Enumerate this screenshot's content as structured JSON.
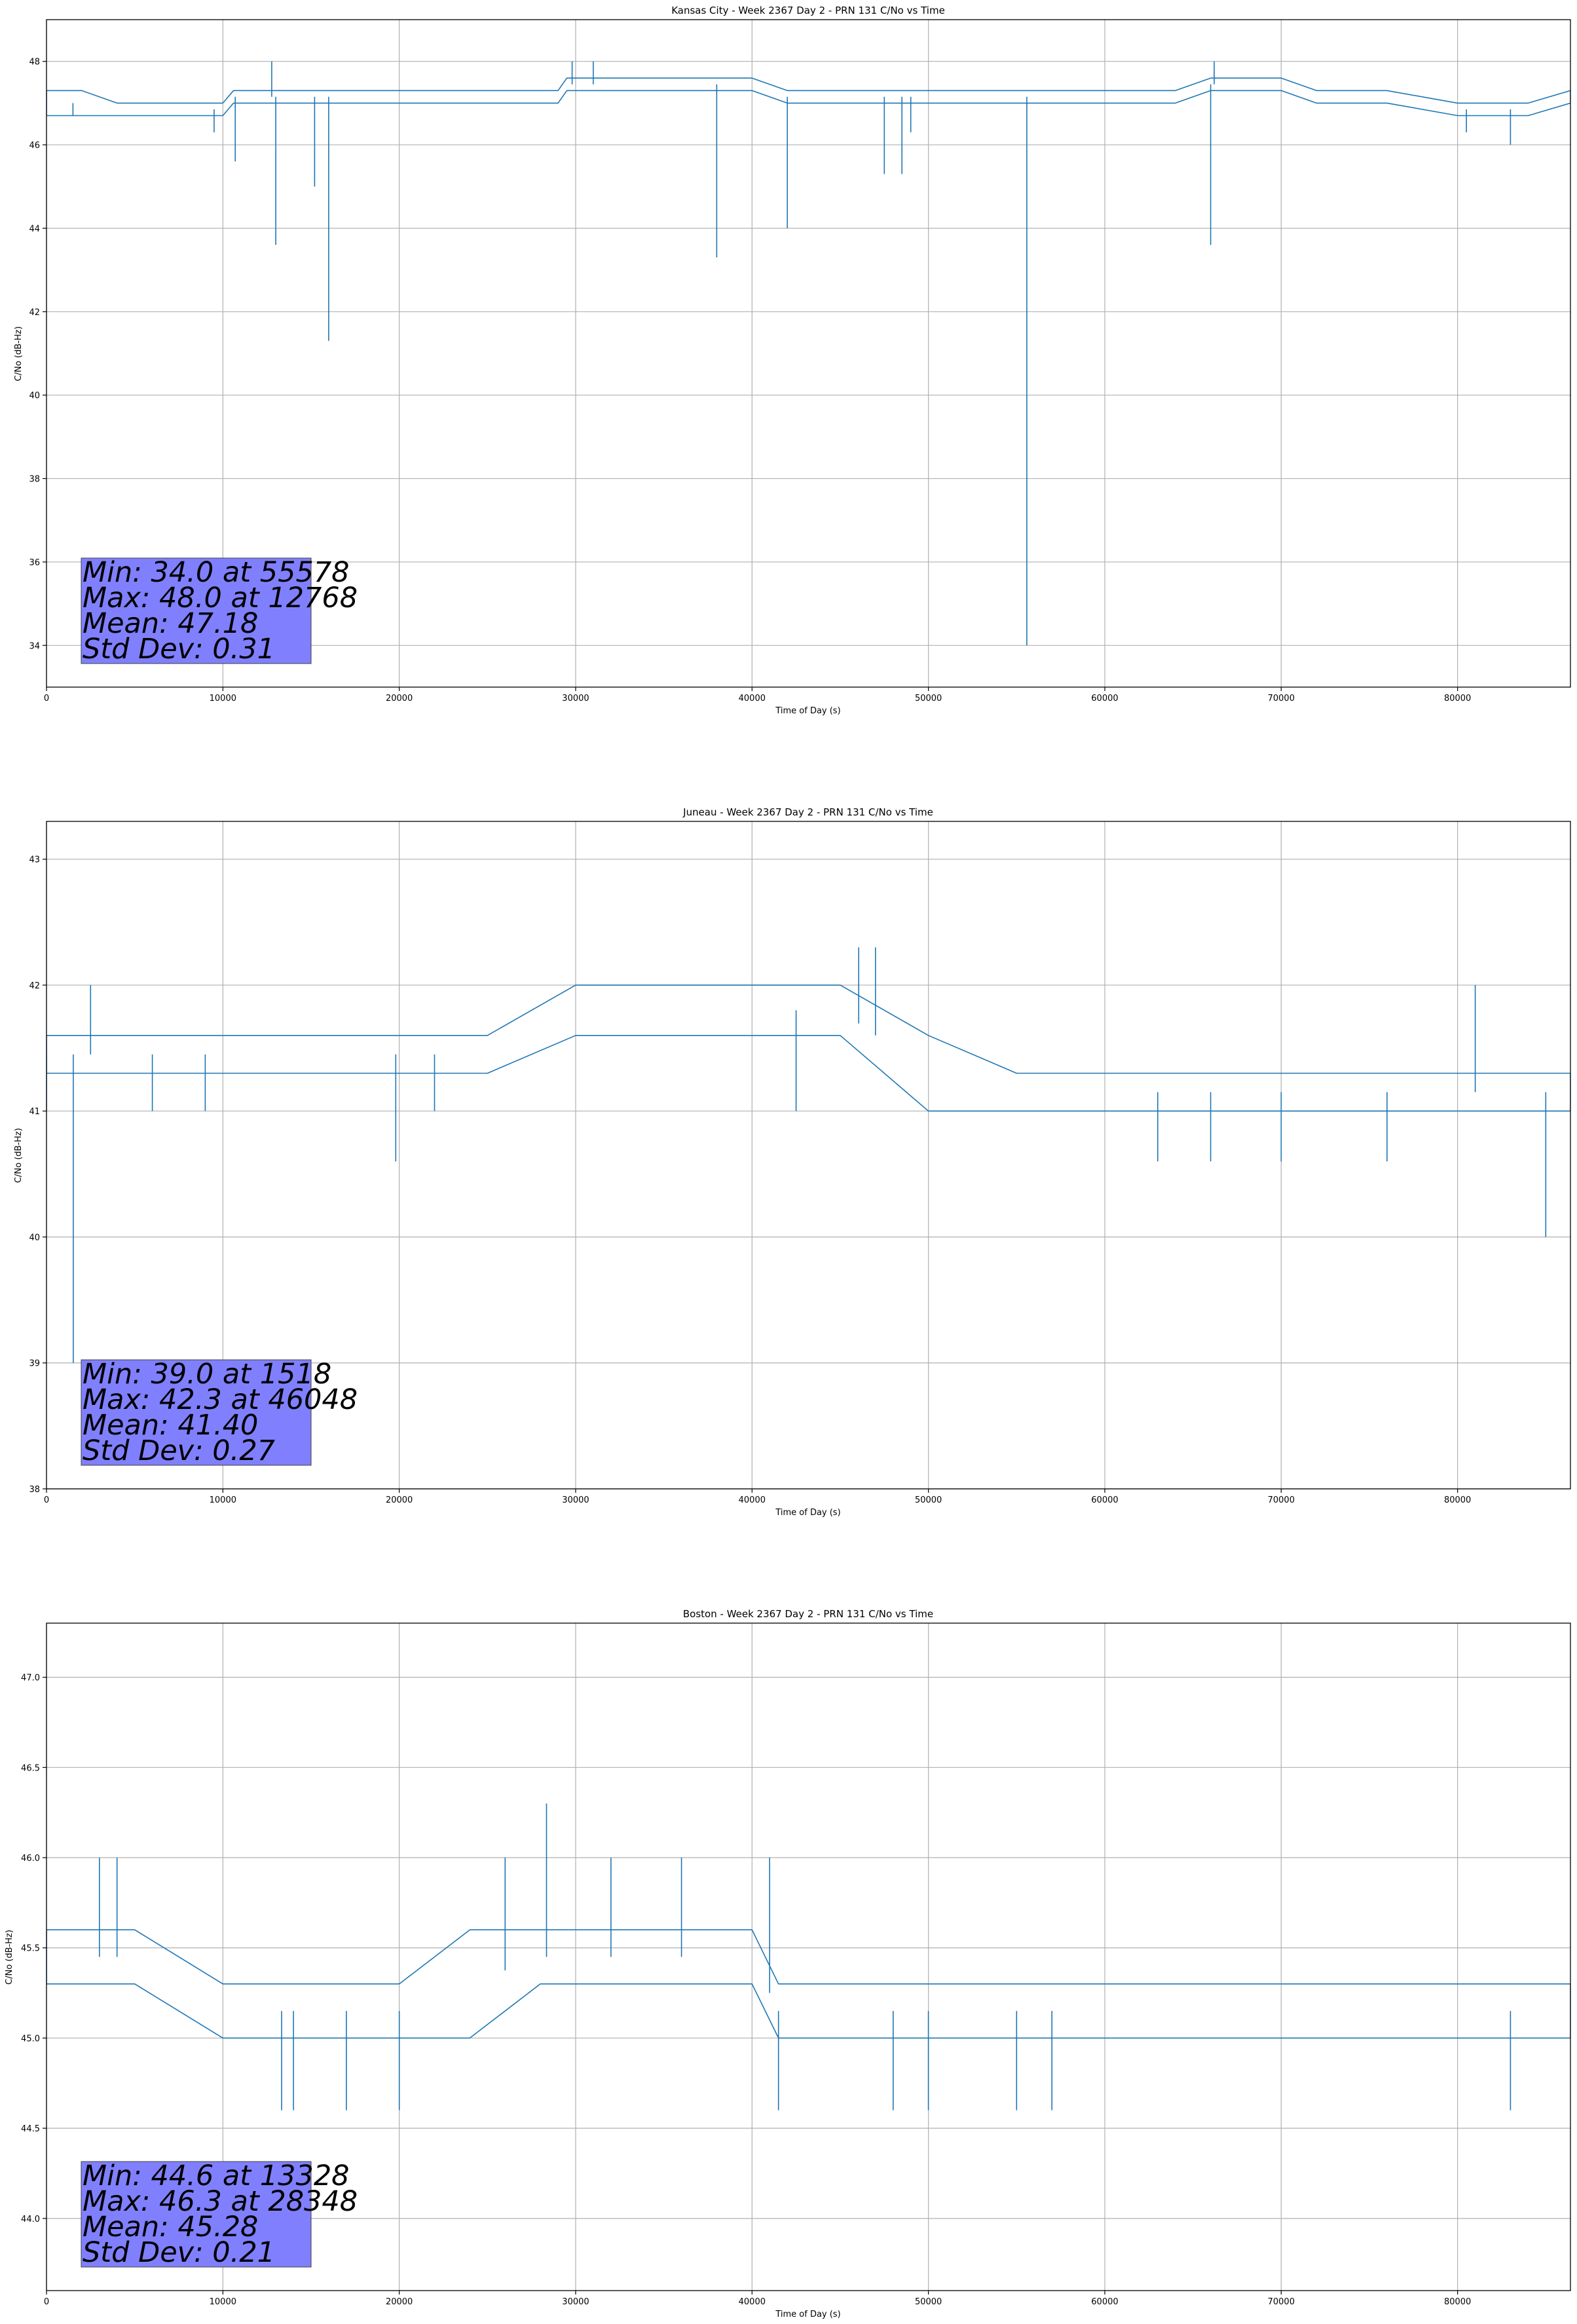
{
  "chart_data": [
    {
      "type": "line",
      "title": "Kansas City - Week 2367 Day 2 - PRN 131 C/No vs Time",
      "xlabel": "Time of Day (s)",
      "ylabel": "C/No (dB-Hz)",
      "xlim": [
        0,
        86400
      ],
      "ylim": [
        33.0,
        49.0
      ],
      "xticks": [
        0,
        10000,
        20000,
        30000,
        40000,
        50000,
        60000,
        70000,
        80000
      ],
      "xtick_labels": [
        "0",
        "10000",
        "20000",
        "30000",
        "40000",
        "50000",
        "60000",
        "70000",
        "80000"
      ],
      "yticks": [
        34,
        36,
        38,
        40,
        42,
        44,
        46,
        48
      ],
      "ytick_labels": [
        "34",
        "36",
        "38",
        "40",
        "42",
        "44",
        "46",
        "48"
      ],
      "grid": true,
      "color": "#1f77b4",
      "band": {
        "x": [
          0,
          2000,
          4000,
          6000,
          8000,
          10000,
          10600,
          12000,
          14000,
          16000,
          20000,
          24000,
          29000,
          29500,
          32000,
          36000,
          40000,
          42000,
          44000,
          48000,
          52000,
          56000,
          60000,
          64000,
          66000,
          70000,
          72000,
          76000,
          80000,
          84000,
          86400
        ],
        "low": [
          46.7,
          46.7,
          46.7,
          46.7,
          46.7,
          46.7,
          47.0,
          47.0,
          47.0,
          47.0,
          47.0,
          47.0,
          47.0,
          47.3,
          47.3,
          47.3,
          47.3,
          47.0,
          47.0,
          47.0,
          47.0,
          47.0,
          47.0,
          47.0,
          47.3,
          47.3,
          47.0,
          47.0,
          46.7,
          46.7,
          47.0
        ],
        "high": [
          47.3,
          47.3,
          47.0,
          47.0,
          47.0,
          47.0,
          47.3,
          47.3,
          47.3,
          47.3,
          47.3,
          47.3,
          47.3,
          47.6,
          47.6,
          47.6,
          47.6,
          47.3,
          47.3,
          47.3,
          47.3,
          47.3,
          47.3,
          47.3,
          47.6,
          47.6,
          47.3,
          47.3,
          47.0,
          47.0,
          47.3
        ]
      },
      "spikes": [
        {
          "x": 1500,
          "y": 46.7
        },
        {
          "x": 9500,
          "y": 46.3
        },
        {
          "x": 10700,
          "y": 45.6
        },
        {
          "x": 12768,
          "y": 48.0
        },
        {
          "x": 13000,
          "y": 43.6
        },
        {
          "x": 15200,
          "y": 45.0
        },
        {
          "x": 16000,
          "y": 41.3
        },
        {
          "x": 29800,
          "y": 48.0
        },
        {
          "x": 31000,
          "y": 48.0
        },
        {
          "x": 38000,
          "y": 43.3
        },
        {
          "x": 42000,
          "y": 44.0
        },
        {
          "x": 47500,
          "y": 45.3
        },
        {
          "x": 48500,
          "y": 45.3
        },
        {
          "x": 49000,
          "y": 46.3
        },
        {
          "x": 55578,
          "y": 34.0
        },
        {
          "x": 66000,
          "y": 43.6
        },
        {
          "x": 66200,
          "y": 48.0
        },
        {
          "x": 80500,
          "y": 46.3
        },
        {
          "x": 83000,
          "y": 46.0
        }
      ],
      "stats": [
        "Min: 34.0 at 55578",
        "Max: 48.0 at 12768",
        "Mean: 47.18",
        "Std Dev: 0.31"
      ]
    },
    {
      "type": "line",
      "title": "Juneau - Week 2367 Day 2 - PRN 131 C/No vs Time",
      "xlabel": "Time of Day (s)",
      "ylabel": "C/No (dB-Hz)",
      "xlim": [
        0,
        86400
      ],
      "ylim": [
        38.0,
        43.3
      ],
      "xticks": [
        0,
        10000,
        20000,
        30000,
        40000,
        50000,
        60000,
        70000,
        80000
      ],
      "xtick_labels": [
        "0",
        "10000",
        "20000",
        "30000",
        "40000",
        "50000",
        "60000",
        "70000",
        "80000"
      ],
      "yticks": [
        38,
        39,
        40,
        41,
        42,
        43
      ],
      "ytick_labels": [
        "38",
        "39",
        "40",
        "41",
        "42",
        "43"
      ],
      "grid": true,
      "color": "#1f77b4",
      "band": {
        "x": [
          0,
          5000,
          10000,
          15000,
          20000,
          25000,
          30000,
          35000,
          40000,
          45000,
          50000,
          55000,
          60000,
          65000,
          70000,
          75000,
          80000,
          86400
        ],
        "low": [
          41.3,
          41.3,
          41.3,
          41.3,
          41.3,
          41.3,
          41.6,
          41.6,
          41.6,
          41.6,
          41.0,
          41.0,
          41.0,
          41.0,
          41.0,
          41.0,
          41.0,
          41.0
        ],
        "high": [
          41.6,
          41.6,
          41.6,
          41.6,
          41.6,
          41.6,
          42.0,
          42.0,
          42.0,
          42.0,
          41.6,
          41.3,
          41.3,
          41.3,
          41.3,
          41.3,
          41.3,
          41.3
        ]
      },
      "spikes": [
        {
          "x": 0,
          "y": 41.0
        },
        {
          "x": 1518,
          "y": 39.0
        },
        {
          "x": 2500,
          "y": 42.0
        },
        {
          "x": 6000,
          "y": 41.0
        },
        {
          "x": 9000,
          "y": 41.0
        },
        {
          "x": 19800,
          "y": 40.6
        },
        {
          "x": 22000,
          "y": 41.0
        },
        {
          "x": 42500,
          "y": 41.0
        },
        {
          "x": 46048,
          "y": 42.3
        },
        {
          "x": 47000,
          "y": 42.3
        },
        {
          "x": 63000,
          "y": 40.6
        },
        {
          "x": 66000,
          "y": 40.6
        },
        {
          "x": 70000,
          "y": 40.6
        },
        {
          "x": 76000,
          "y": 40.6
        },
        {
          "x": 81000,
          "y": 42.0
        },
        {
          "x": 85000,
          "y": 40.0
        }
      ],
      "stats": [
        "Min: 39.0 at 1518",
        "Max: 42.3 at 46048",
        "Mean: 41.40",
        "Std Dev: 0.27"
      ]
    },
    {
      "type": "line",
      "title": "Boston - Week 2367 Day 2 - PRN 131 C/No vs Time",
      "xlabel": "Time of Day (s)",
      "ylabel": "C/No (dB-Hz)",
      "xlim": [
        0,
        86400
      ],
      "ylim": [
        43.6,
        47.3
      ],
      "xticks": [
        0,
        10000,
        20000,
        30000,
        40000,
        50000,
        60000,
        70000,
        80000
      ],
      "xtick_labels": [
        "0",
        "10000",
        "20000",
        "30000",
        "40000",
        "50000",
        "60000",
        "70000",
        "80000"
      ],
      "yticks": [
        44.0,
        44.5,
        45.0,
        45.5,
        46.0,
        46.5,
        47.0
      ],
      "ytick_labels": [
        "44.0",
        "44.5",
        "45.0",
        "45.5",
        "46.0",
        "46.5",
        "47.0"
      ],
      "grid": true,
      "color": "#1f77b4",
      "band": {
        "x": [
          0,
          5000,
          10000,
          15000,
          20000,
          24000,
          28000,
          32000,
          36000,
          40000,
          41500,
          45000,
          50000,
          55000,
          60000,
          65000,
          70000,
          75000,
          80000,
          86400
        ],
        "low": [
          45.3,
          45.3,
          45.0,
          45.0,
          45.0,
          45.0,
          45.3,
          45.3,
          45.3,
          45.3,
          45.0,
          45.0,
          45.0,
          45.0,
          45.0,
          45.0,
          45.0,
          45.0,
          45.0,
          45.0
        ],
        "high": [
          45.6,
          45.6,
          45.3,
          45.3,
          45.3,
          45.6,
          45.6,
          45.6,
          45.6,
          45.6,
          45.3,
          45.3,
          45.3,
          45.3,
          45.3,
          45.3,
          45.3,
          45.3,
          45.3,
          45.3
        ]
      },
      "spikes": [
        {
          "x": 3000,
          "y": 46.0
        },
        {
          "x": 4000,
          "y": 46.0
        },
        {
          "x": 13328,
          "y": 44.6
        },
        {
          "x": 14000,
          "y": 44.6
        },
        {
          "x": 17000,
          "y": 44.6
        },
        {
          "x": 20000,
          "y": 44.6
        },
        {
          "x": 26000,
          "y": 46.0
        },
        {
          "x": 28348,
          "y": 46.3
        },
        {
          "x": 32000,
          "y": 46.0
        },
        {
          "x": 36000,
          "y": 46.0
        },
        {
          "x": 41000,
          "y": 46.0
        },
        {
          "x": 41500,
          "y": 44.6
        },
        {
          "x": 48000,
          "y": 44.6
        },
        {
          "x": 50000,
          "y": 44.6
        },
        {
          "x": 55000,
          "y": 44.6
        },
        {
          "x": 57000,
          "y": 44.6
        },
        {
          "x": 83000,
          "y": 44.6
        }
      ],
      "stats": [
        "Min: 44.6 at 13328",
        "Max: 46.3 at 28348",
        "Mean: 45.28",
        "Std Dev: 0.21"
      ]
    }
  ]
}
